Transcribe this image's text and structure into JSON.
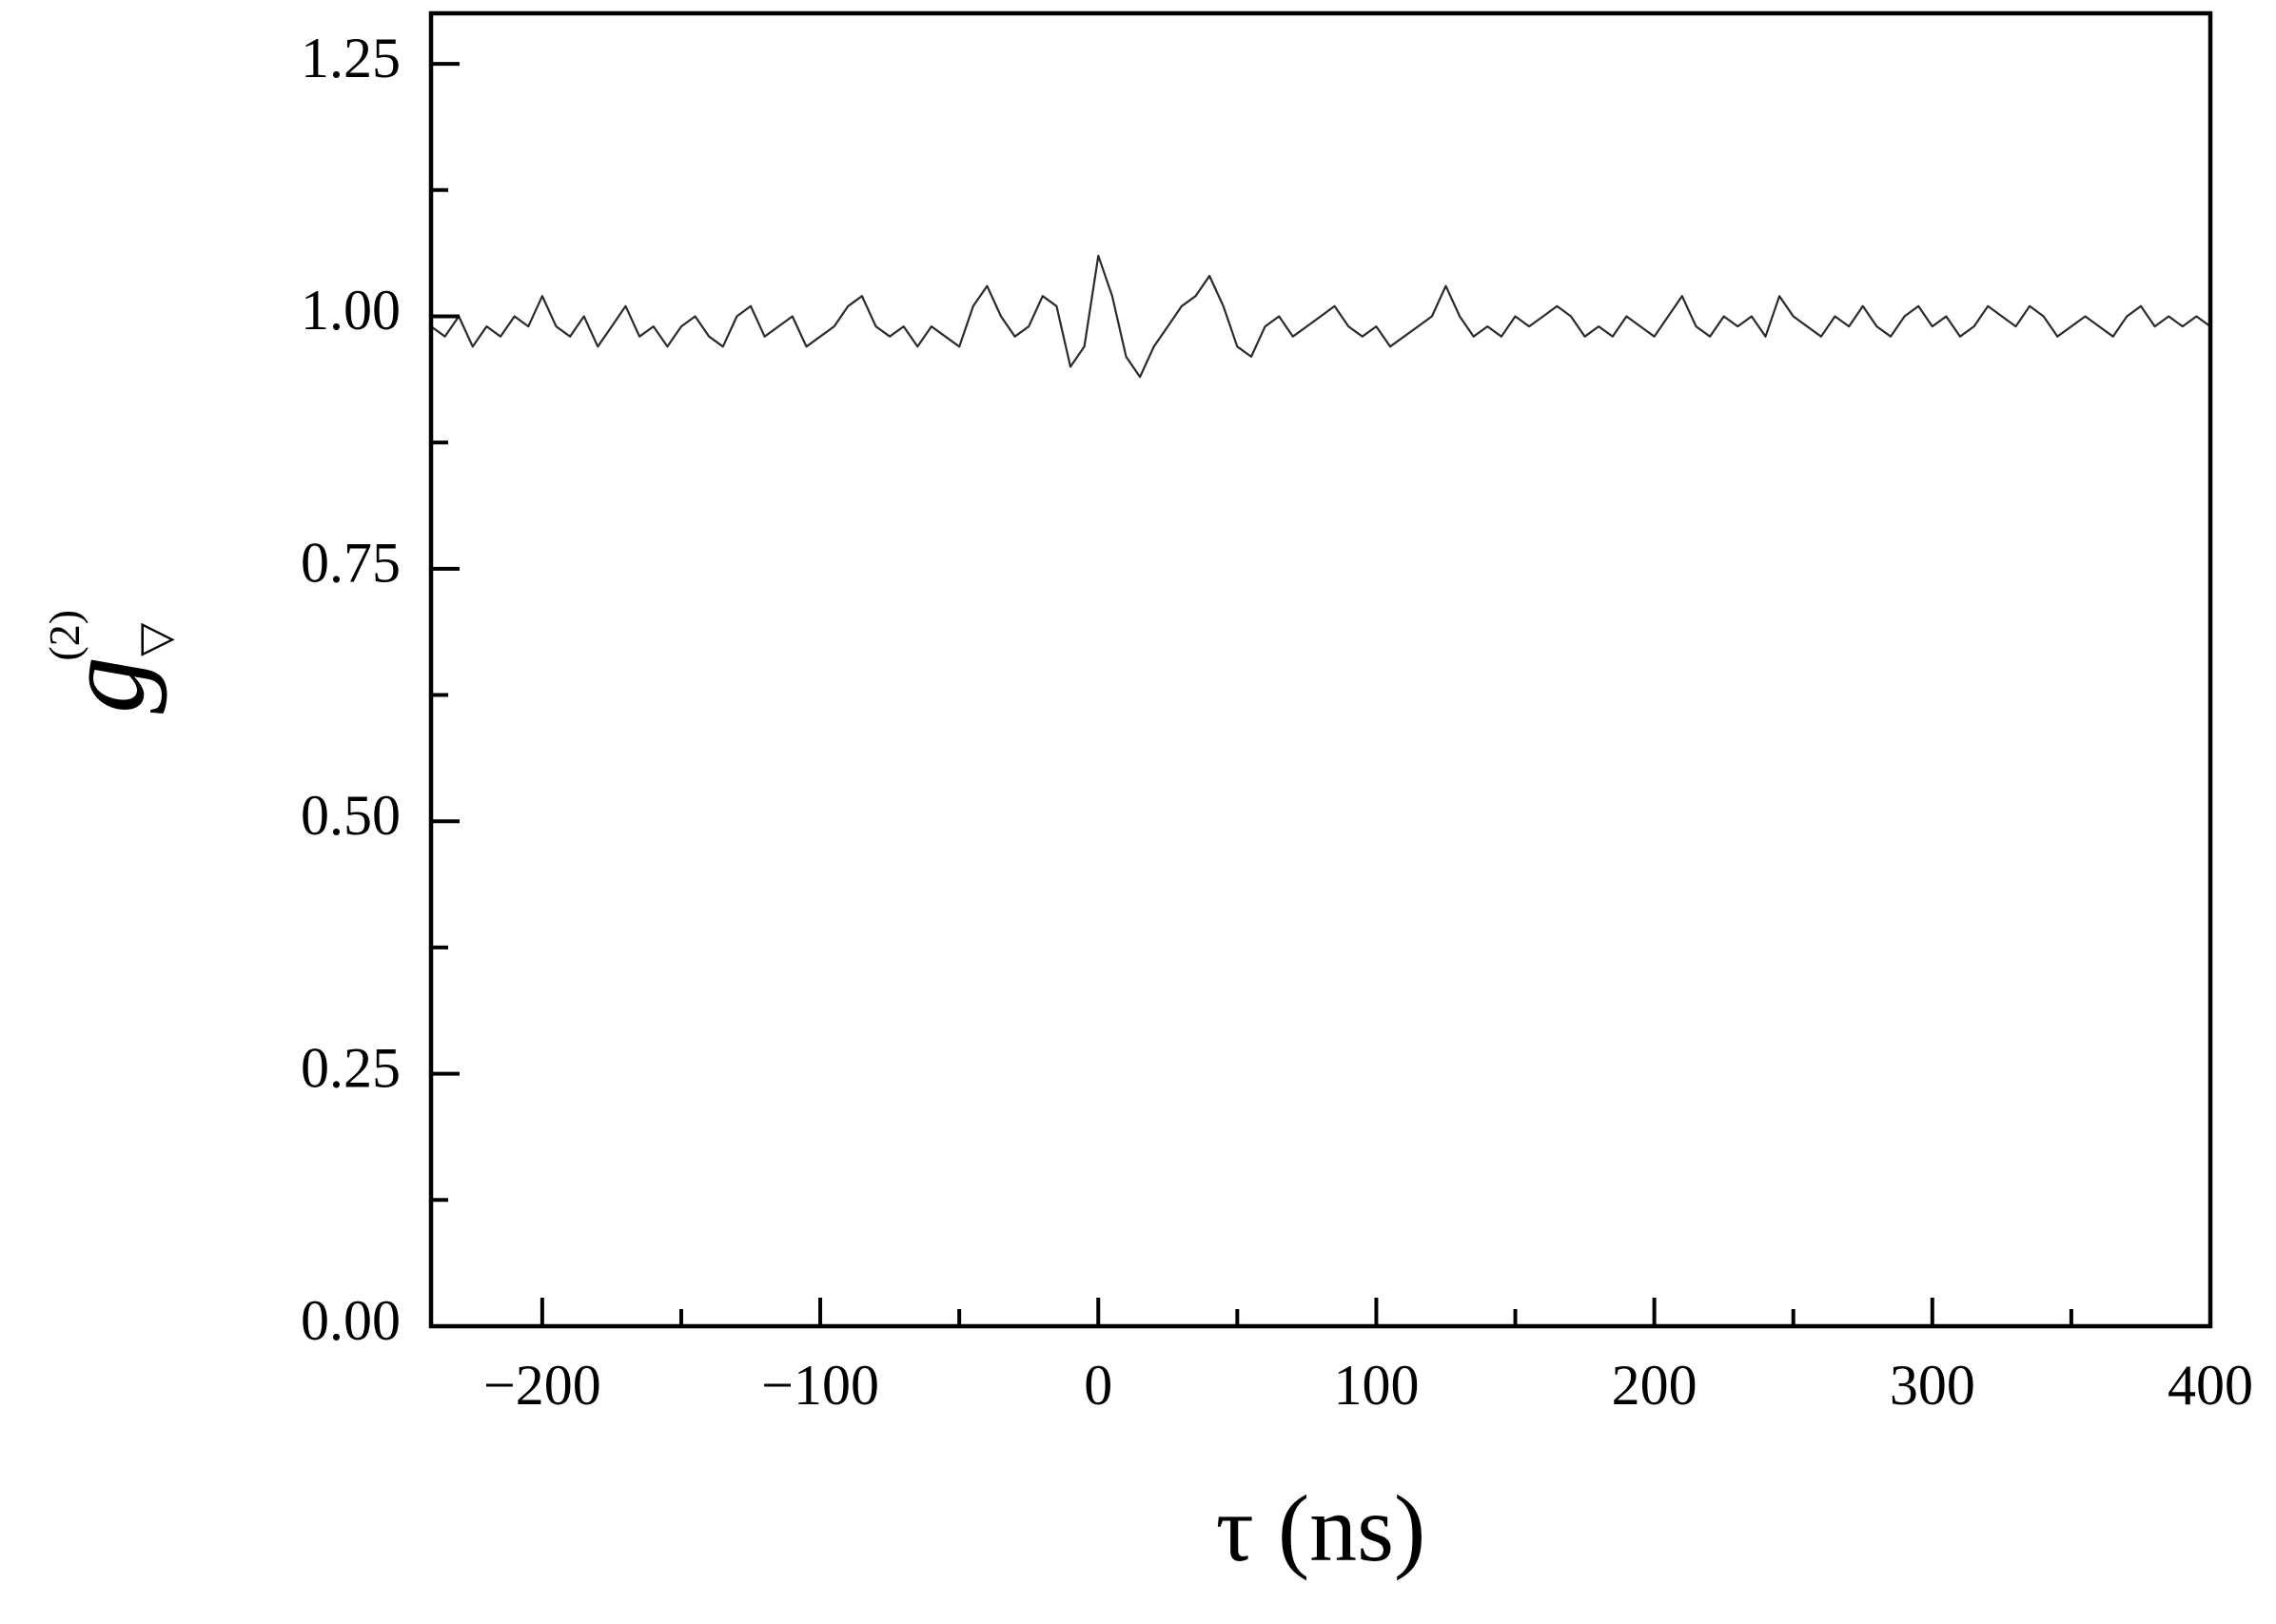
{
  "chart_data": {
    "type": "line",
    "x_label": "τ (ns)",
    "y_label": {
      "main": "g",
      "sub": "▽",
      "sup": "(2)"
    },
    "color": "#2b2b2b",
    "xlim": [
      -240,
      400
    ],
    "ylim": [
      0,
      1.3
    ],
    "xticks": [
      {
        "value": -200,
        "label": "−200"
      },
      {
        "value": -100,
        "label": "−100"
      },
      0,
      100,
      200,
      300,
      400
    ],
    "xminorticks": [
      -150,
      -50,
      50,
      150,
      250,
      350
    ],
    "yticks": [
      {
        "value": 0,
        "label": "0.00"
      },
      0.25,
      {
        "value": 0.5,
        "label": "0.50"
      },
      0.75,
      {
        "value": 1,
        "label": "1.00"
      },
      1.25
    ],
    "yminorticks": [
      0.125,
      0.375,
      0.625,
      0.875,
      1.125
    ],
    "x": [
      -240,
      -235,
      -230,
      -225,
      -220,
      -215,
      -210,
      -205,
      -200,
      -195,
      -190,
      -185,
      -180,
      -175,
      -170,
      -165,
      -160,
      -155,
      -150,
      -145,
      -140,
      -135,
      -130,
      -125,
      -120,
      -115,
      -110,
      -105,
      -100,
      -95,
      -90,
      -85,
      -80,
      -75,
      -70,
      -65,
      -60,
      -55,
      -50,
      -45,
      -40,
      -35,
      -30,
      -25,
      -20,
      -15,
      -10,
      -5,
      0,
      5,
      10,
      15,
      20,
      25,
      30,
      35,
      40,
      45,
      50,
      55,
      60,
      65,
      70,
      75,
      80,
      85,
      90,
      95,
      100,
      105,
      110,
      115,
      120,
      125,
      130,
      135,
      140,
      145,
      150,
      155,
      160,
      165,
      170,
      175,
      180,
      185,
      190,
      195,
      200,
      205,
      210,
      215,
      220,
      225,
      230,
      235,
      240,
      245,
      250,
      255,
      260,
      265,
      270,
      275,
      280,
      285,
      290,
      295,
      300,
      305,
      310,
      315,
      320,
      325,
      330,
      335,
      340,
      345,
      350,
      355,
      360,
      365,
      370,
      375,
      380,
      385,
      390,
      395,
      400
    ],
    "values": [
      0.99,
      0.98,
      1.0,
      0.97,
      0.99,
      0.98,
      1.0,
      0.99,
      1.02,
      0.99,
      0.98,
      1.0,
      0.97,
      0.99,
      1.01,
      0.98,
      0.99,
      0.97,
      0.99,
      1.0,
      0.98,
      0.97,
      1.0,
      1.01,
      0.98,
      0.99,
      1.0,
      0.97,
      0.98,
      0.99,
      1.01,
      1.02,
      0.99,
      0.98,
      0.99,
      0.97,
      0.99,
      0.98,
      0.97,
      1.01,
      1.03,
      1.0,
      0.98,
      0.99,
      1.02,
      1.01,
      0.95,
      0.97,
      1.06,
      1.02,
      0.96,
      0.94,
      0.97,
      0.99,
      1.01,
      1.02,
      1.04,
      1.01,
      0.97,
      0.96,
      0.99,
      1.0,
      0.98,
      0.99,
      1.0,
      1.01,
      0.99,
      0.98,
      0.99,
      0.97,
      0.98,
      0.99,
      1.0,
      1.03,
      1.0,
      0.98,
      0.99,
      0.98,
      1.0,
      0.99,
      1.0,
      1.01,
      1.0,
      0.98,
      0.99,
      0.98,
      1.0,
      0.99,
      0.98,
      1.0,
      1.02,
      0.99,
      0.98,
      1.0,
      0.99,
      1.0,
      0.98,
      1.02,
      1.0,
      0.99,
      0.98,
      1.0,
      0.99,
      1.01,
      0.99,
      0.98,
      1.0,
      1.01,
      0.99,
      1.0,
      0.98,
      0.99,
      1.01,
      1.0,
      0.99,
      1.01,
      1.0,
      0.98,
      0.99,
      1.0,
      0.99,
      0.98,
      1.0,
      1.01,
      0.99,
      1.0,
      0.99,
      1.0,
      0.99
    ]
  }
}
